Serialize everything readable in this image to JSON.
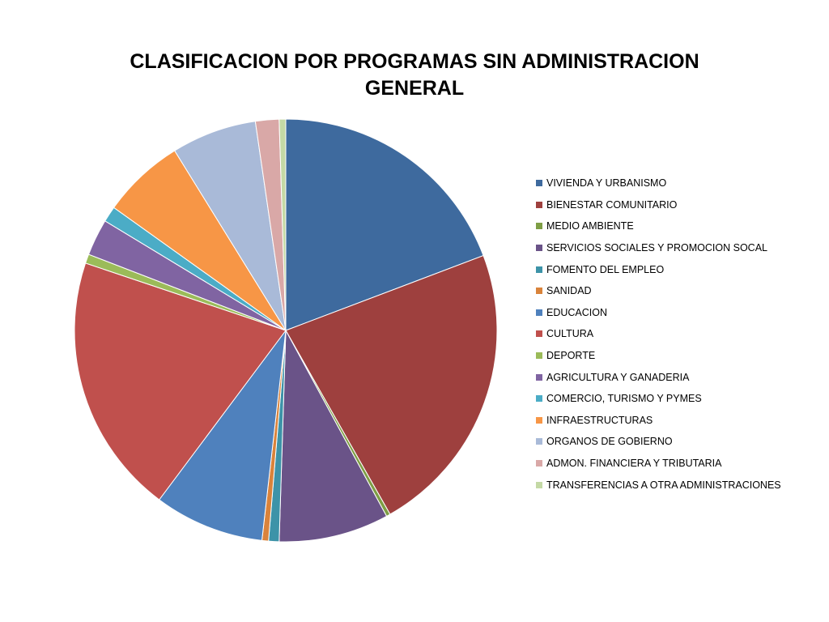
{
  "chart_data": {
    "type": "pie",
    "title": "CLASIFICACION POR PROGRAMAS SIN ADMINISTRACION\nGENERAL",
    "legend_position": "right",
    "start_angle_deg": 0,
    "direction": "clockwise",
    "categories": [
      "VIVIENDA Y URBANISMO",
      "BIENESTAR COMUNITARIO",
      "MEDIO AMBIENTE",
      "SERVICIOS SOCIALES Y PROMOCION SOCAL",
      "FOMENTO DEL EMPLEO",
      "SANIDAD",
      "EDUCACION",
      "CULTURA",
      "DEPORTE",
      "AGRICULTURA Y GANADERIA",
      "COMERCIO, TURISMO Y PYMES",
      "INFRAESTRUCTURAS",
      "ORGANOS DE GOBIERNO",
      "ADMON. FINANCIERA Y TRIBUTARIA",
      "TRANSFERENCIAS A OTRA ADMINISTRACIONES"
    ],
    "values": [
      19.2,
      22.5,
      0.3,
      8.4,
      0.8,
      0.5,
      8.4,
      19.9,
      0.7,
      2.8,
      1.2,
      6.3,
      6.5,
      1.8,
      0.5
    ],
    "colors": [
      "#3E6A9E",
      "#9E403E",
      "#7E9E45",
      "#6A5388",
      "#3D93A8",
      "#D9833B",
      "#4F81BD",
      "#C0504D",
      "#9BBB59",
      "#8064A2",
      "#4BACC6",
      "#F79646",
      "#A9BAD8",
      "#D9A8A7",
      "#C4D9A5"
    ]
  }
}
